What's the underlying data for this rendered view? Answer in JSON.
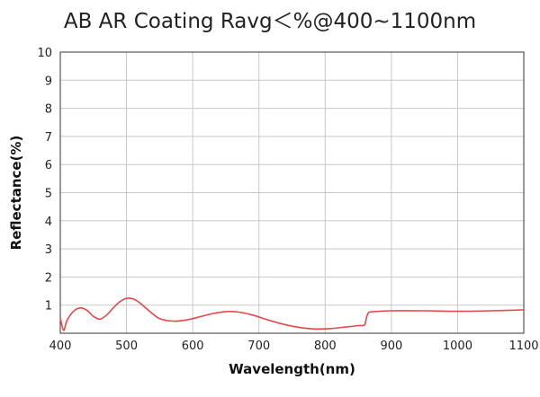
{
  "chart_data": {
    "type": "line",
    "title": "AB AR Coating Ravg＜%@400~1100nm",
    "xlabel": "Wavelength(nm)",
    "ylabel": "Reflectance(%)",
    "xlim": [
      400,
      1100
    ],
    "ylim": [
      0,
      10
    ],
    "xticks": [
      400,
      500,
      600,
      700,
      800,
      900,
      1000,
      1100
    ],
    "yticks": [
      1,
      2,
      3,
      4,
      5,
      6,
      7,
      8,
      9,
      10
    ],
    "grid": true,
    "line_color": "#e8474a",
    "series": [
      {
        "x": [
          400,
          405,
          410,
          420,
          430,
          440,
          450,
          460,
          470,
          480,
          490,
          500,
          510,
          520,
          530,
          540,
          550,
          570,
          590,
          610,
          630,
          650,
          670,
          690,
          710,
          730,
          750,
          770,
          790,
          810,
          830,
          850,
          860,
          863,
          865,
          870,
          900,
          950,
          1000,
          1050,
          1100
        ],
        "y": [
          0.55,
          0.1,
          0.45,
          0.78,
          0.9,
          0.82,
          0.6,
          0.5,
          0.65,
          0.9,
          1.12,
          1.24,
          1.22,
          1.08,
          0.88,
          0.68,
          0.52,
          0.43,
          0.47,
          0.58,
          0.7,
          0.77,
          0.75,
          0.65,
          0.5,
          0.36,
          0.25,
          0.18,
          0.15,
          0.17,
          0.22,
          0.27,
          0.3,
          0.6,
          0.72,
          0.76,
          0.8,
          0.8,
          0.78,
          0.8,
          0.83
        ]
      }
    ]
  }
}
